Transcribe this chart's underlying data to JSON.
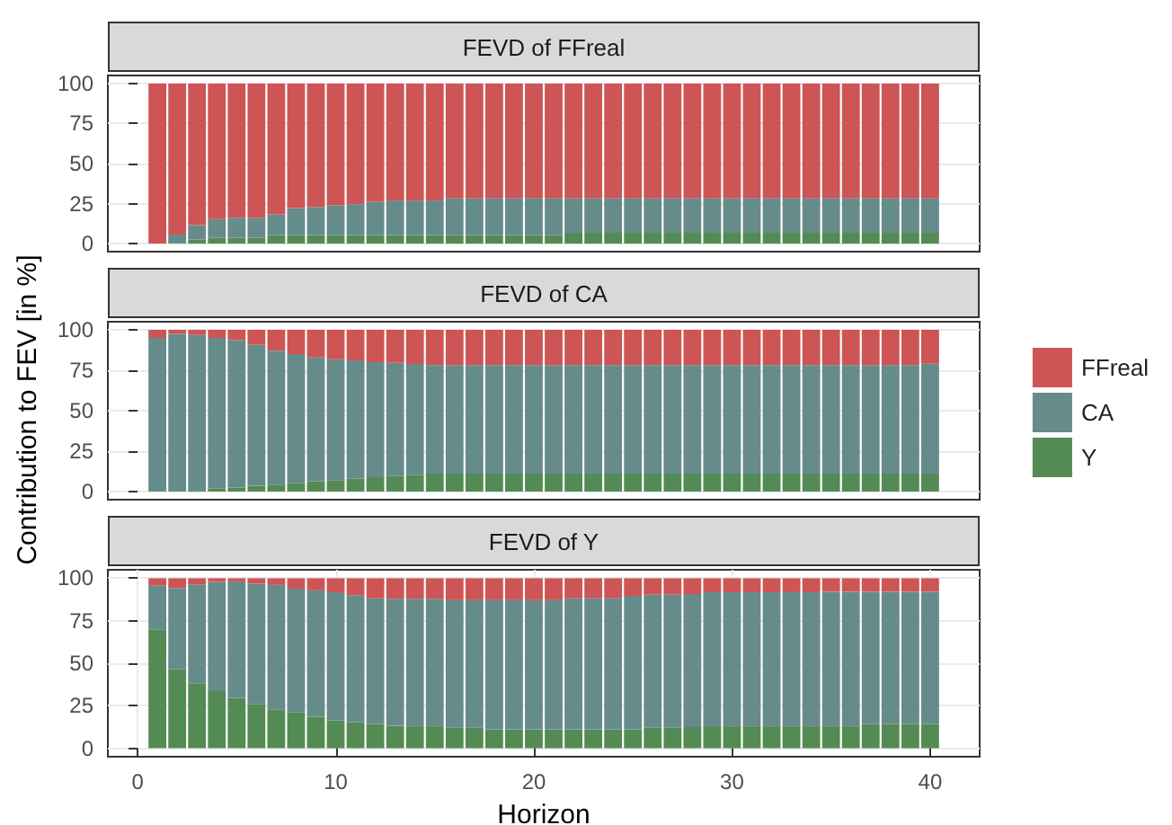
{
  "chart_data": [
    {
      "type": "bar",
      "title": "FEVD of FFreal",
      "stacked": true,
      "x": [
        1,
        2,
        3,
        4,
        5,
        6,
        7,
        8,
        9,
        10,
        11,
        12,
        13,
        14,
        15,
        16,
        17,
        18,
        19,
        20,
        21,
        22,
        23,
        24,
        25,
        26,
        27,
        28,
        29,
        30,
        31,
        32,
        33,
        34,
        35,
        36,
        37,
        38,
        39,
        40
      ],
      "xlim": [
        -1.5,
        42.5
      ],
      "ylim": [
        -5,
        105
      ],
      "yticks": [
        0,
        25,
        50,
        75,
        100
      ],
      "grid": true,
      "legend": false,
      "tick_labels": "y",
      "series": [
        {
          "color": "#548b54",
          "values": [
            0,
            0.5,
            2.5,
            3.6,
            3.6,
            3.6,
            5.4,
            5.4,
            5.4,
            5.4,
            5.4,
            5.4,
            5.4,
            5.4,
            5.4,
            5.4,
            5.4,
            5.4,
            5.4,
            5.4,
            5.4,
            6.8,
            6.8,
            6.8,
            6.8,
            6.8,
            6.8,
            6.8,
            6.8,
            6.8,
            6.8,
            6.8,
            6.8,
            6.8,
            6.8,
            6.8,
            6.8,
            6.8,
            6.8,
            6.8
          ]
        },
        {
          "color": "#668b8b",
          "values": [
            0,
            5.2,
            9,
            11.8,
            12.5,
            12.5,
            12.9,
            16.8,
            17.5,
            18.6,
            19.3,
            20.8,
            21.5,
            21.5,
            21.5,
            22.9,
            22.9,
            22.9,
            22.9,
            22.9,
            22.9,
            21.5,
            21.5,
            21.5,
            21.5,
            21.5,
            21.5,
            21.5,
            21.5,
            21.5,
            21.5,
            21.5,
            21.5,
            21.5,
            21.5,
            21.5,
            21.5,
            21.5,
            21.5,
            21.5
          ]
        },
        {
          "color": "#cd5555",
          "values": [
            100,
            94.3,
            88.5,
            84.6,
            83.9,
            83.9,
            81.7,
            77.8,
            77.1,
            76,
            75.3,
            73.8,
            73.1,
            73.1,
            73.1,
            71.7,
            71.7,
            71.7,
            71.7,
            71.7,
            71.7,
            71.7,
            71.7,
            71.7,
            71.7,
            71.7,
            71.7,
            71.7,
            71.7,
            71.7,
            71.7,
            71.7,
            71.7,
            71.7,
            71.7,
            71.7,
            71.7,
            71.7,
            71.7,
            71.7
          ]
        }
      ]
    },
    {
      "type": "bar",
      "title": "FEVD of CA",
      "ylabel": "Contribution to FEV [in %]",
      "stacked": true,
      "x": [
        1,
        2,
        3,
        4,
        5,
        6,
        7,
        8,
        9,
        10,
        11,
        12,
        13,
        14,
        15,
        16,
        17,
        18,
        19,
        20,
        21,
        22,
        23,
        24,
        25,
        26,
        27,
        28,
        29,
        30,
        31,
        32,
        33,
        34,
        35,
        36,
        37,
        38,
        39,
        40
      ],
      "xlim": [
        -1.5,
        42.5
      ],
      "ylim": [
        -5,
        105
      ],
      "yticks": [
        0,
        25,
        50,
        75,
        100
      ],
      "grid": true,
      "legend": "right",
      "tick_labels": "y",
      "series": [
        {
          "name": "Y",
          "color": "#548b54",
          "values": [
            0,
            0.5,
            1,
            1.8,
            2.5,
            3.6,
            4.3,
            5.4,
            6.4,
            7.1,
            7.9,
            8.9,
            9.6,
            10.4,
            11.1,
            11.1,
            11.1,
            11.1,
            11.1,
            11.1,
            11.1,
            11.1,
            11.1,
            11.1,
            11.1,
            11.1,
            11.1,
            11.1,
            11.1,
            11.1,
            11.1,
            11.1,
            11.1,
            11.1,
            11.1,
            11.1,
            11.1,
            11.1,
            11.1,
            11.1
          ]
        },
        {
          "name": "CA",
          "color": "#668b8b",
          "values": [
            95,
            97,
            95.8,
            93.2,
            91.1,
            87.1,
            82.8,
            79.6,
            76.5,
            74.7,
            73.2,
            71.1,
            70,
            68.5,
            67.1,
            67.1,
            67.1,
            67.1,
            67.1,
            67.1,
            67.1,
            67.1,
            67.1,
            67.1,
            67.1,
            67.1,
            67.1,
            67.1,
            67.1,
            67.1,
            67.1,
            67.1,
            67.1,
            67.1,
            67.1,
            67.1,
            67.1,
            67.1,
            67.1,
            68
          ]
        },
        {
          "name": "FFreal",
          "color": "#cd5555",
          "values": [
            5,
            2.5,
            3.2,
            5,
            6.4,
            9.3,
            12.9,
            15,
            17.1,
            18.2,
            18.9,
            20,
            20.4,
            21.1,
            21.8,
            21.8,
            21.8,
            21.8,
            21.8,
            21.8,
            21.8,
            21.8,
            21.8,
            21.8,
            21.8,
            21.8,
            21.8,
            21.8,
            21.8,
            21.8,
            21.8,
            21.8,
            21.8,
            21.8,
            21.8,
            21.8,
            21.8,
            21.8,
            21.8,
            20.9
          ]
        }
      ]
    },
    {
      "type": "bar",
      "title": "FEVD of Y",
      "xlabel": "Horizon",
      "stacked": true,
      "x": [
        1,
        2,
        3,
        4,
        5,
        6,
        7,
        8,
        9,
        10,
        11,
        12,
        13,
        14,
        15,
        16,
        17,
        18,
        19,
        20,
        21,
        22,
        23,
        24,
        25,
        26,
        27,
        28,
        29,
        30,
        31,
        32,
        33,
        34,
        35,
        36,
        37,
        38,
        39,
        40
      ],
      "xlim": [
        -1.5,
        42.5
      ],
      "xticks": [
        0,
        10,
        20,
        30,
        40
      ],
      "ylim": [
        -5,
        105
      ],
      "yticks": [
        0,
        25,
        50,
        75,
        100
      ],
      "grid": true,
      "legend": false,
      "series": [
        {
          "color": "#548b54",
          "values": [
            70,
            46.4,
            38.2,
            33.6,
            29.6,
            26.1,
            22.9,
            21.1,
            18.6,
            16.4,
            15.4,
            14.3,
            13.2,
            12.9,
            12.9,
            12.1,
            12.1,
            11.1,
            11.1,
            11.1,
            11.1,
            11.1,
            11.1,
            11.1,
            11.1,
            12.1,
            12.1,
            12.5,
            12.5,
            12.9,
            12.9,
            12.9,
            12.9,
            12.9,
            12.9,
            12.9,
            14.3,
            14.3,
            14.3,
            14.3
          ]
        },
        {
          "color": "#668b8b",
          "values": [
            25.7,
            47.9,
            58.2,
            64.3,
            68.6,
            70.7,
            73.2,
            72.8,
            74.3,
            75.4,
            74.6,
            73.9,
            74.7,
            75,
            75,
            75,
            75,
            76,
            76,
            76,
            76,
            77.1,
            77.1,
            77.1,
            78.5,
            78.3,
            78.3,
            78.2,
            79.3,
            78.9,
            78.9,
            78.9,
            78.9,
            78.9,
            79.2,
            79.2,
            77.8,
            77.8,
            77.8,
            77.8
          ]
        },
        {
          "color": "#cd5555",
          "values": [
            4.3,
            5.7,
            3.6,
            2.1,
            1.8,
            3.2,
            3.9,
            6.1,
            7.1,
            8.2,
            10,
            11.8,
            12.1,
            12.1,
            12.1,
            12.9,
            12.9,
            12.9,
            12.9,
            12.9,
            12.9,
            11.8,
            11.8,
            11.8,
            10.4,
            9.6,
            9.6,
            9.3,
            8.2,
            8.2,
            8.2,
            8.2,
            8.2,
            8.2,
            7.9,
            7.9,
            7.9,
            7.9,
            7.9,
            7.9
          ]
        }
      ]
    }
  ]
}
